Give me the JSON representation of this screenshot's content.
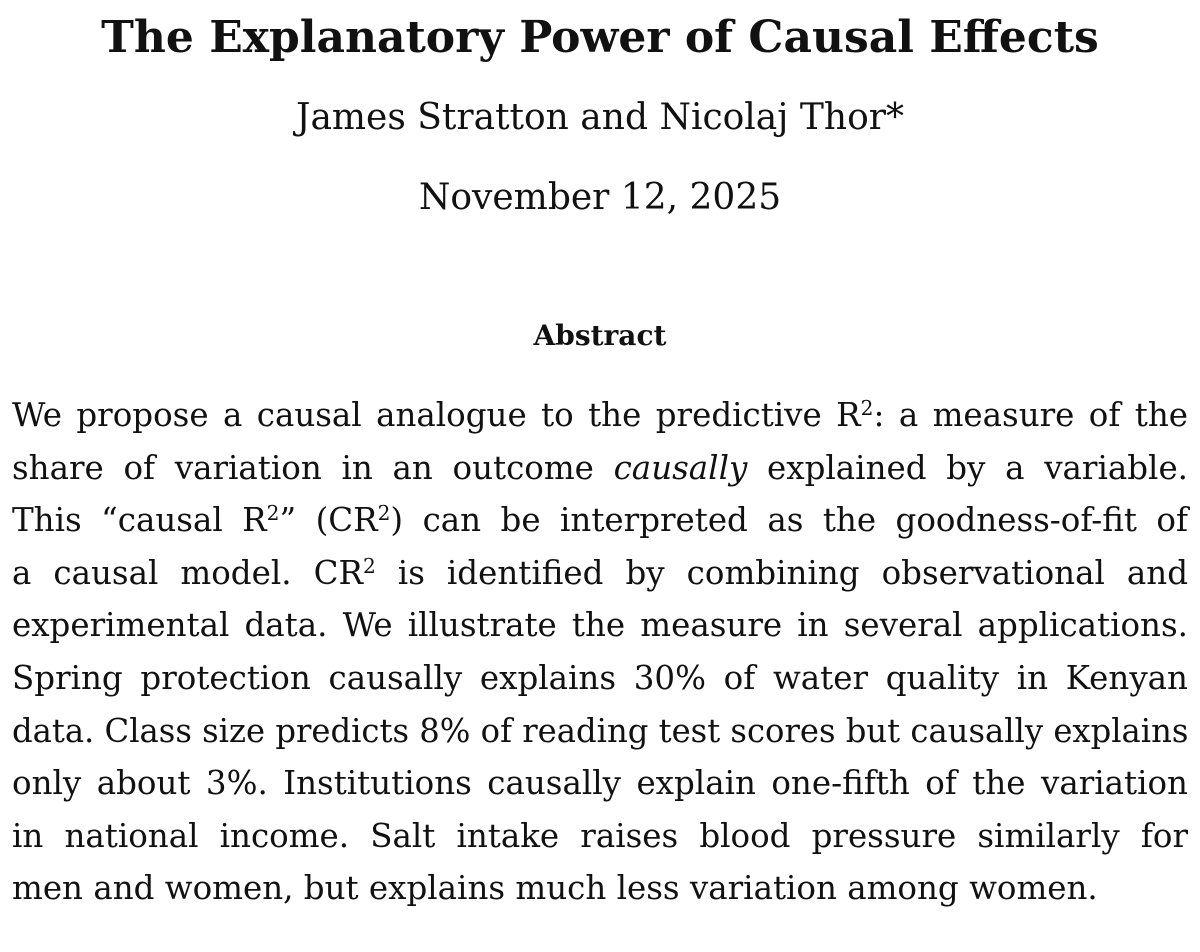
{
  "paper": {
    "title": "The Explanatory Power of Causal Effects",
    "authors": "James Stratton and Nicolaj Thor*",
    "date": "November 12, 2025"
  },
  "abstract": {
    "heading": "Abstract",
    "superscript": "2",
    "l1a": "We propose a causal analogue to the predictive R",
    "l1b": ": a measure of the",
    "l2a": "share of variation in an outcome ",
    "l2em": "causally",
    "l2b": " explained by a variable.",
    "l3a": "This “causal R",
    "l3b": "” (CR",
    "l3c": ") can be interpreted as the goodness-of-fit of",
    "l4a": "a causal model. CR",
    "l4b": " is identified by combining observational and",
    "l5": "experimental data. We illustrate the measure in several applications.",
    "l6": "Spring protection causally explains 30% of water quality in Kenyan",
    "l7": "data. Class size predicts 8% of reading test scores but causally explains",
    "l8": "only about 3%. Institutions causally explain one-fifth of the variation",
    "l9": "in national income. Salt intake raises blood pressure similarly for",
    "l10": "men and women, but explains much less variation among women."
  }
}
